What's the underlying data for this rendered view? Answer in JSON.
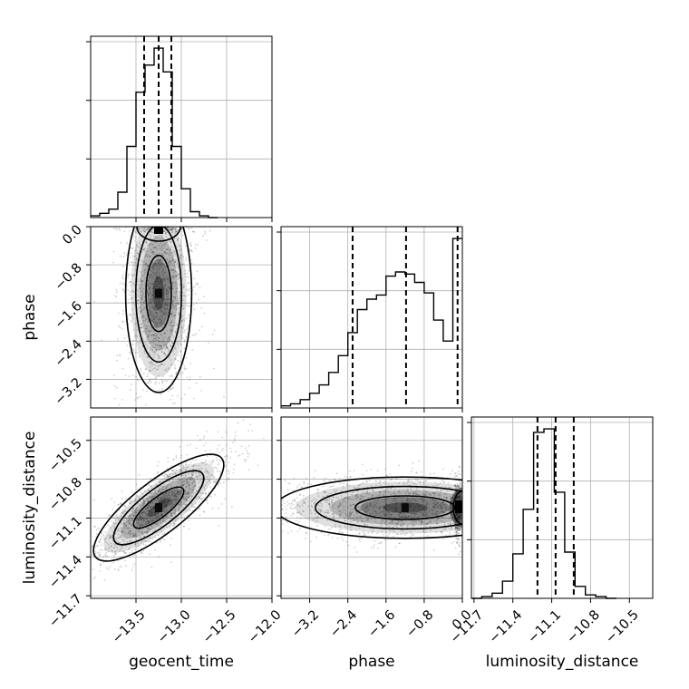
{
  "chart_data": {
    "type": "scatter",
    "title": "",
    "parameters": [
      "geocent_time",
      "phase",
      "luminosity_distance"
    ],
    "axis_labels": {
      "geocent_time": "geocent_time",
      "phase": "phase",
      "luminosity_distance": "luminosity_distance"
    },
    "ranges": {
      "geocent_time": [
        -14.0,
        -12.0
      ],
      "phase": [
        -3.8,
        0.0
      ],
      "luminosity_distance": [
        -11.72,
        -10.32
      ]
    },
    "ticks": {
      "geocent_time": {
        "values": [
          -13.5,
          -13.0,
          -12.5,
          -12.0
        ],
        "labels": [
          "−13.5",
          "−13.0",
          "−12.5",
          "−12.0"
        ]
      },
      "phase": {
        "values": [
          -3.2,
          -2.4,
          -1.6,
          -0.8,
          0.0
        ],
        "labels": [
          "−3.2",
          "−2.4",
          "−1.6",
          "−0.8",
          "0.0"
        ]
      },
      "luminosity_distance": {
        "values": [
          -11.7,
          -11.4,
          -11.1,
          -10.8,
          -10.5
        ],
        "labels": [
          "−11.7",
          "−11.4",
          "−11.1",
          "−10.8",
          "−10.5"
        ]
      }
    },
    "grid": true,
    "histograms": {
      "geocent_time": {
        "bin_edges": [
          -14.0,
          -13.9,
          -13.8,
          -13.7,
          -13.6,
          -13.5,
          -13.4,
          -13.3,
          -13.2,
          -13.1,
          -13.0,
          -12.9,
          -12.8,
          -12.7,
          -12.6
        ],
        "values": [
          0.01,
          0.025,
          0.05,
          0.15,
          0.42,
          0.74,
          0.9,
          1.0,
          0.86,
          0.42,
          0.17,
          0.035,
          0.01,
          0.0
        ]
      },
      "phase": {
        "bin_edges": [
          -3.8,
          -3.6,
          -3.4,
          -3.2,
          -3.0,
          -2.8,
          -2.6,
          -2.4,
          -2.2,
          -2.0,
          -1.8,
          -1.6,
          -1.4,
          -1.2,
          -1.0,
          -0.8,
          -0.6,
          -0.4,
          -0.2,
          0.0
        ],
        "values": [
          0.01,
          0.02,
          0.04,
          0.07,
          0.11,
          0.17,
          0.25,
          0.36,
          0.47,
          0.52,
          0.54,
          0.63,
          0.65,
          0.64,
          0.6,
          0.55,
          0.42,
          0.32,
          0.81
        ]
      },
      "luminosity_distance": {
        "bin_edges": [
          -11.72,
          -11.64,
          -11.56,
          -11.48,
          -11.4,
          -11.32,
          -11.24,
          -11.16,
          -11.08,
          -11.0,
          -10.92,
          -10.84,
          -10.76,
          -10.68,
          -10.6
        ],
        "values": [
          0.0,
          0.01,
          0.03,
          0.1,
          0.26,
          0.52,
          0.97,
          0.99,
          0.62,
          0.27,
          0.07,
          0.02,
          0.01,
          0.0
        ]
      }
    },
    "quantiles": {
      "geocent_time": [
        -13.41,
        -13.25,
        -13.11
      ],
      "phase": [
        -2.3,
        -1.18,
        -0.1
      ],
      "luminosity_distance": [
        -11.21,
        -11.07,
        -10.93
      ]
    },
    "panels_2d": [
      {
        "x": "geocent_time",
        "y": "phase",
        "mode": [
          -13.25,
          -1.4
        ],
        "contour_levels": 3
      },
      {
        "x": "geocent_time",
        "y": "luminosity_distance",
        "mode": [
          -13.25,
          -11.02
        ],
        "contour_levels": 3
      },
      {
        "x": "phase",
        "y": "luminosity_distance",
        "mode": [
          -1.2,
          -11.02
        ],
        "contour_levels": 3
      }
    ]
  }
}
